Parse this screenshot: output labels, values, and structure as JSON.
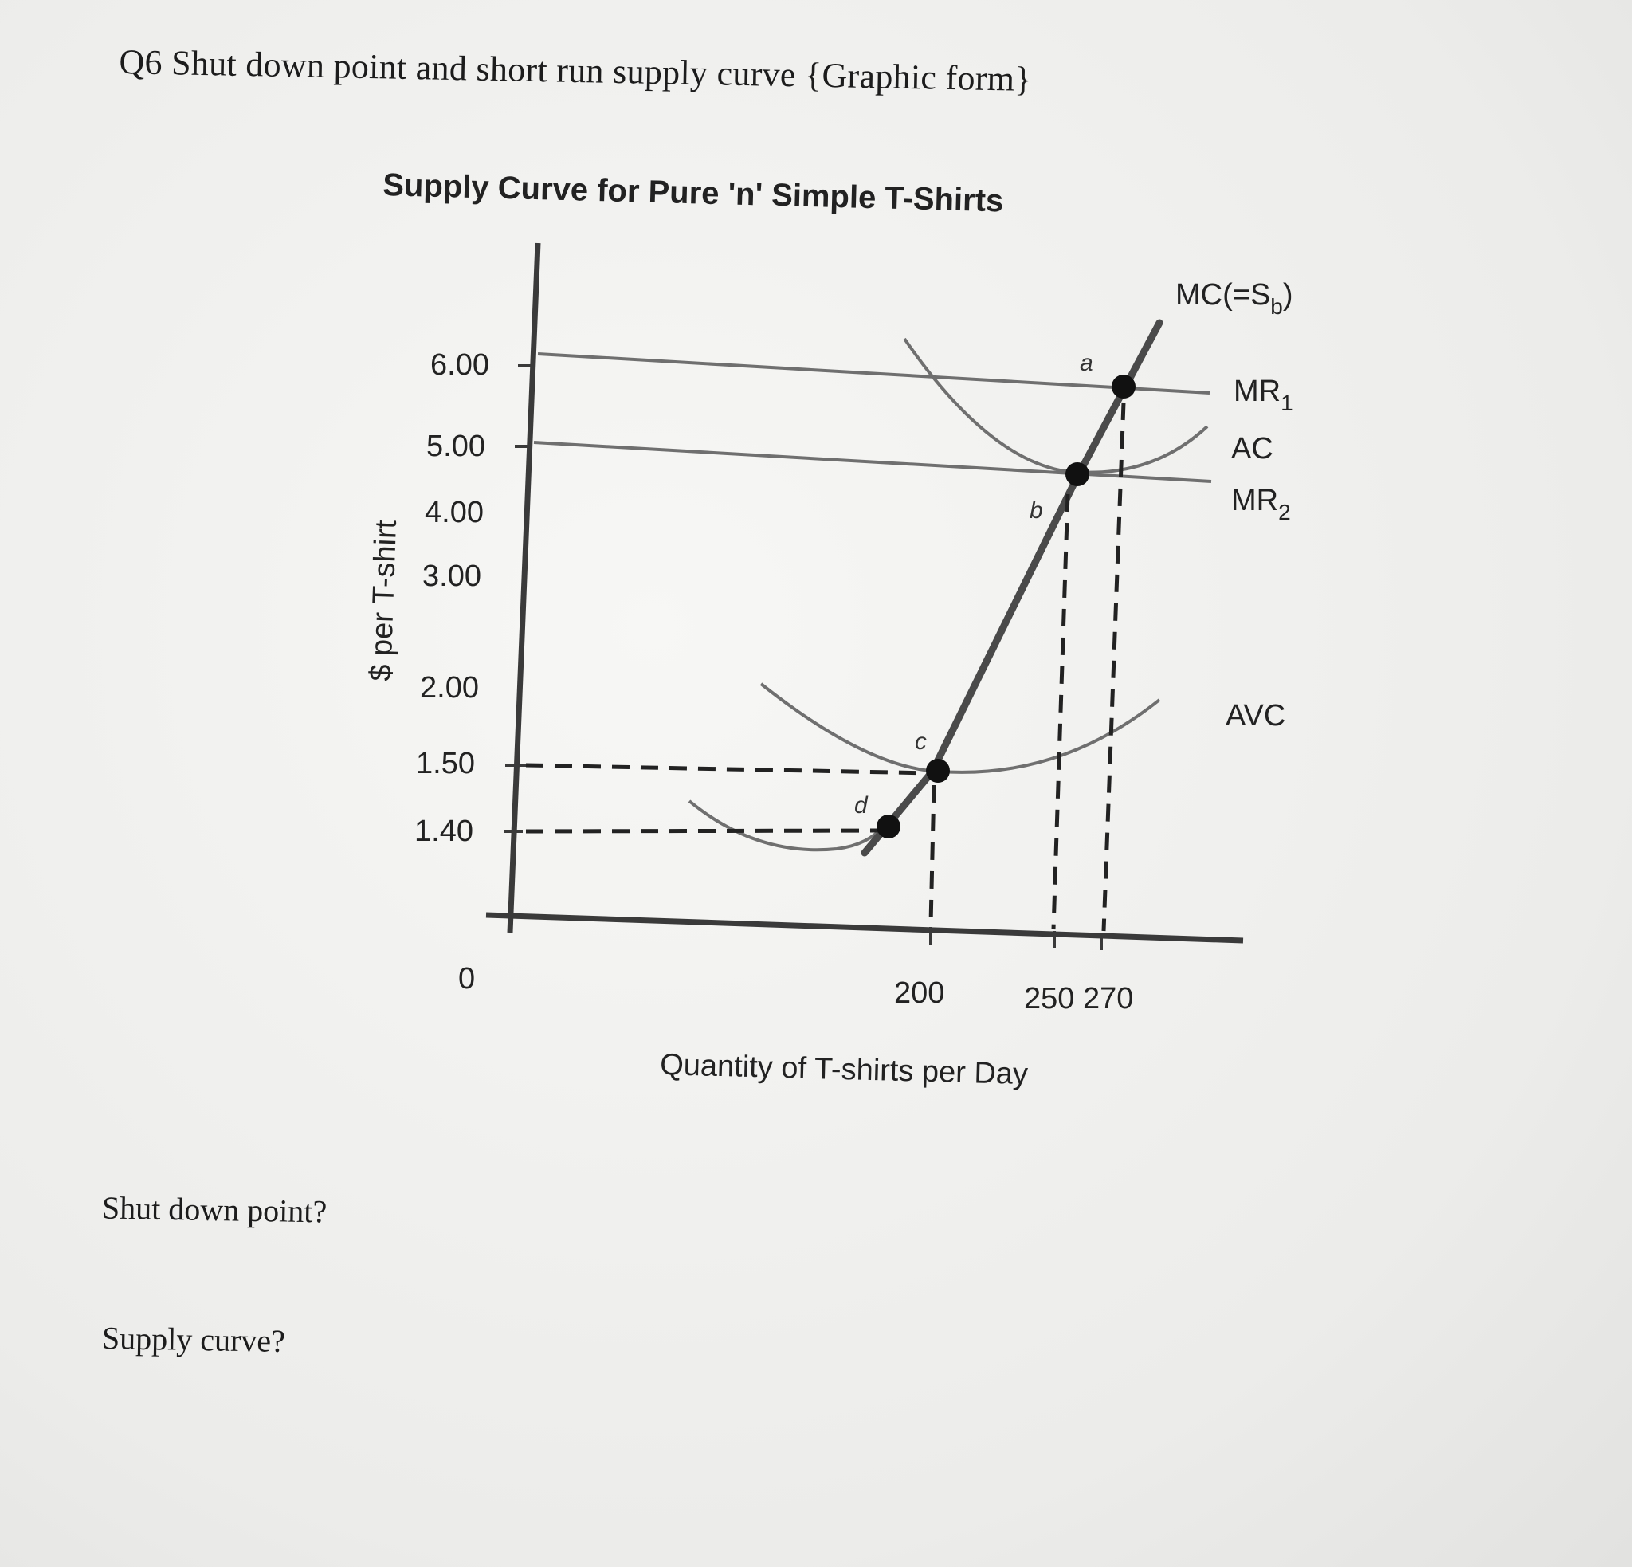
{
  "question": {
    "title": "Q6 Shut down point and short run supply curve {Graphic form}",
    "shutdown_prompt": "Shut down point?",
    "supply_prompt": "Supply curve?"
  },
  "colors": {
    "axis": "#3a3a3a",
    "mc": "#4a4a4a",
    "curves": "#6f6f6f",
    "guides": "#222222",
    "points": "#111111"
  },
  "chart_data": {
    "type": "line",
    "title": "Supply Curve for Pure 'n' Simple T-Shirts",
    "xlabel": "Quantity of T-shirts per Day",
    "ylabel": "$ per T-shirt",
    "y_ticks": [
      "6.00",
      "5.00",
      "4.00",
      "3.00",
      "2.00",
      "1.50",
      "1.40"
    ],
    "x_ticks": [
      "200",
      "250 270"
    ],
    "origin_label": "0",
    "curves": [
      {
        "name": "MC(=S",
        "subscript": "b",
        "suffix": ")",
        "key": "mc"
      },
      {
        "name": "MR",
        "subscript": "1",
        "value": 5.8,
        "key": "mr1"
      },
      {
        "name": "AC",
        "subscript": "",
        "key": "ac"
      },
      {
        "name": "MR",
        "subscript": "2",
        "value": 4.5,
        "key": "mr2"
      },
      {
        "name": "AVC",
        "subscript": "",
        "key": "avc"
      }
    ],
    "points": [
      {
        "label": "a",
        "q": 270,
        "price": 5.8
      },
      {
        "label": "b",
        "q": 250,
        "price": 4.5
      },
      {
        "label": "c",
        "q": 200,
        "price": 1.5
      },
      {
        "label": "d",
        "q": 180,
        "price": 1.4
      }
    ],
    "notes": "MC passes through points d, c, b, a; shutdown at c (minimum of AVC)."
  }
}
